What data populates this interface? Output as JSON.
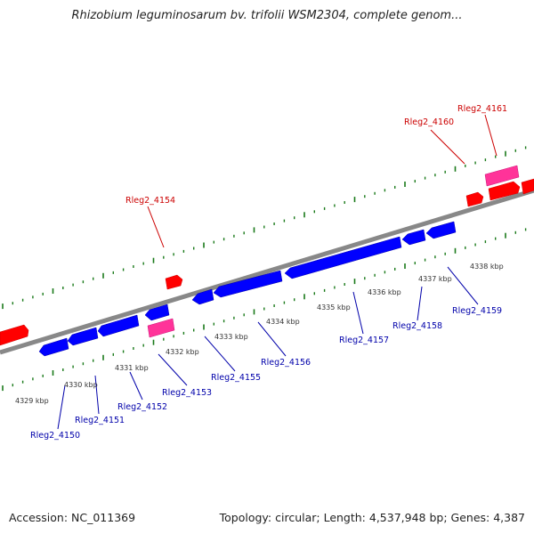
{
  "title": "Rhizobium leguminosarum bv. trifolii WSM2304, complete genom...",
  "footer": {
    "accession": "Accession: NC_011369",
    "summary": "Topology: circular; Length: 4,537,948 bp; Genes: 4,387"
  },
  "colors": {
    "forward_gene": "#ff0000",
    "reverse_gene": "#0000ff",
    "pink_feature": "#ff3399",
    "tick": "#1a7a1a",
    "backbone": "#888888",
    "forward_label": "#cc0000",
    "reverse_label": "#0000aa",
    "kbp_label": "#333333"
  },
  "kbp_labels": [
    "4329 kbp",
    "4330 kbp",
    "4331 kbp",
    "4332 kbp",
    "4333 kbp",
    "4334 kbp",
    "4335 kbp",
    "4336 kbp",
    "4337 kbp",
    "4338 kbp"
  ],
  "forward_gene_labels": [
    "Rleg2_4154",
    "Rleg2_4160",
    "Rleg2_4161"
  ],
  "reverse_gene_labels": [
    "Rleg2_4150",
    "Rleg2_4151",
    "Rleg2_4152",
    "Rleg2_4153",
    "Rleg2_4155",
    "Rleg2_4156",
    "Rleg2_4157",
    "Rleg2_4158",
    "Rleg2_4159"
  ]
}
